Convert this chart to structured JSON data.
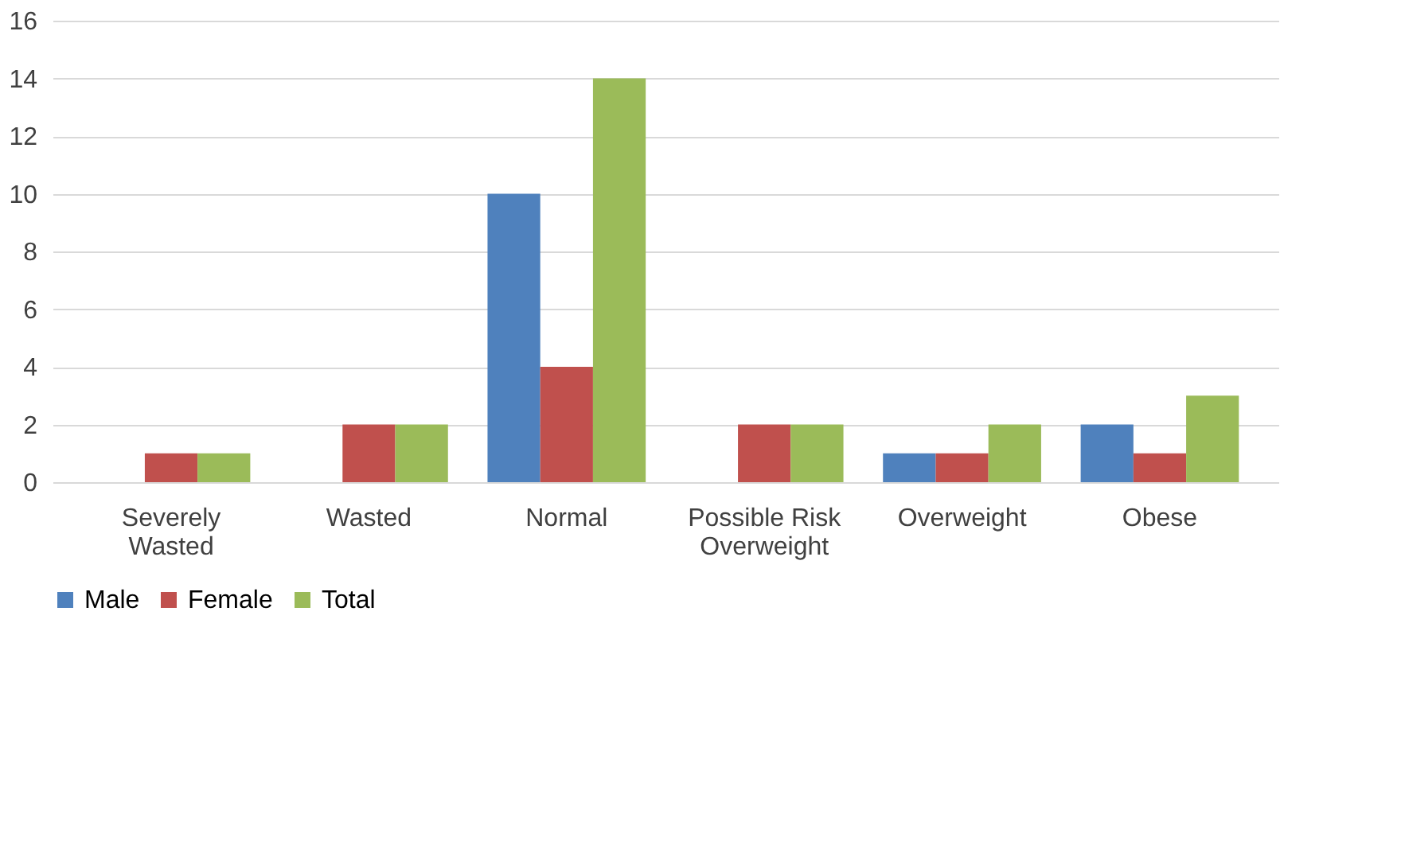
{
  "chart_data": {
    "type": "bar",
    "categories": [
      "Severely Wasted",
      "Wasted",
      "Normal",
      "Possible Risk Overweight",
      "Overweight",
      "Obese"
    ],
    "series": [
      {
        "name": "Male",
        "color": "#4f81bd",
        "values": [
          0,
          0,
          10,
          0,
          1,
          2
        ]
      },
      {
        "name": "Female",
        "color": "#c0504d",
        "values": [
          1,
          2,
          4,
          2,
          1,
          1
        ]
      },
      {
        "name": "Total",
        "color": "#9bbb59",
        "values": [
          1,
          2,
          14,
          2,
          2,
          3
        ]
      }
    ],
    "ylim": [
      0,
      16
    ],
    "yticks": [
      0,
      2,
      4,
      6,
      8,
      10,
      12,
      14,
      16
    ],
    "grid": "y",
    "legend": "bottom"
  }
}
